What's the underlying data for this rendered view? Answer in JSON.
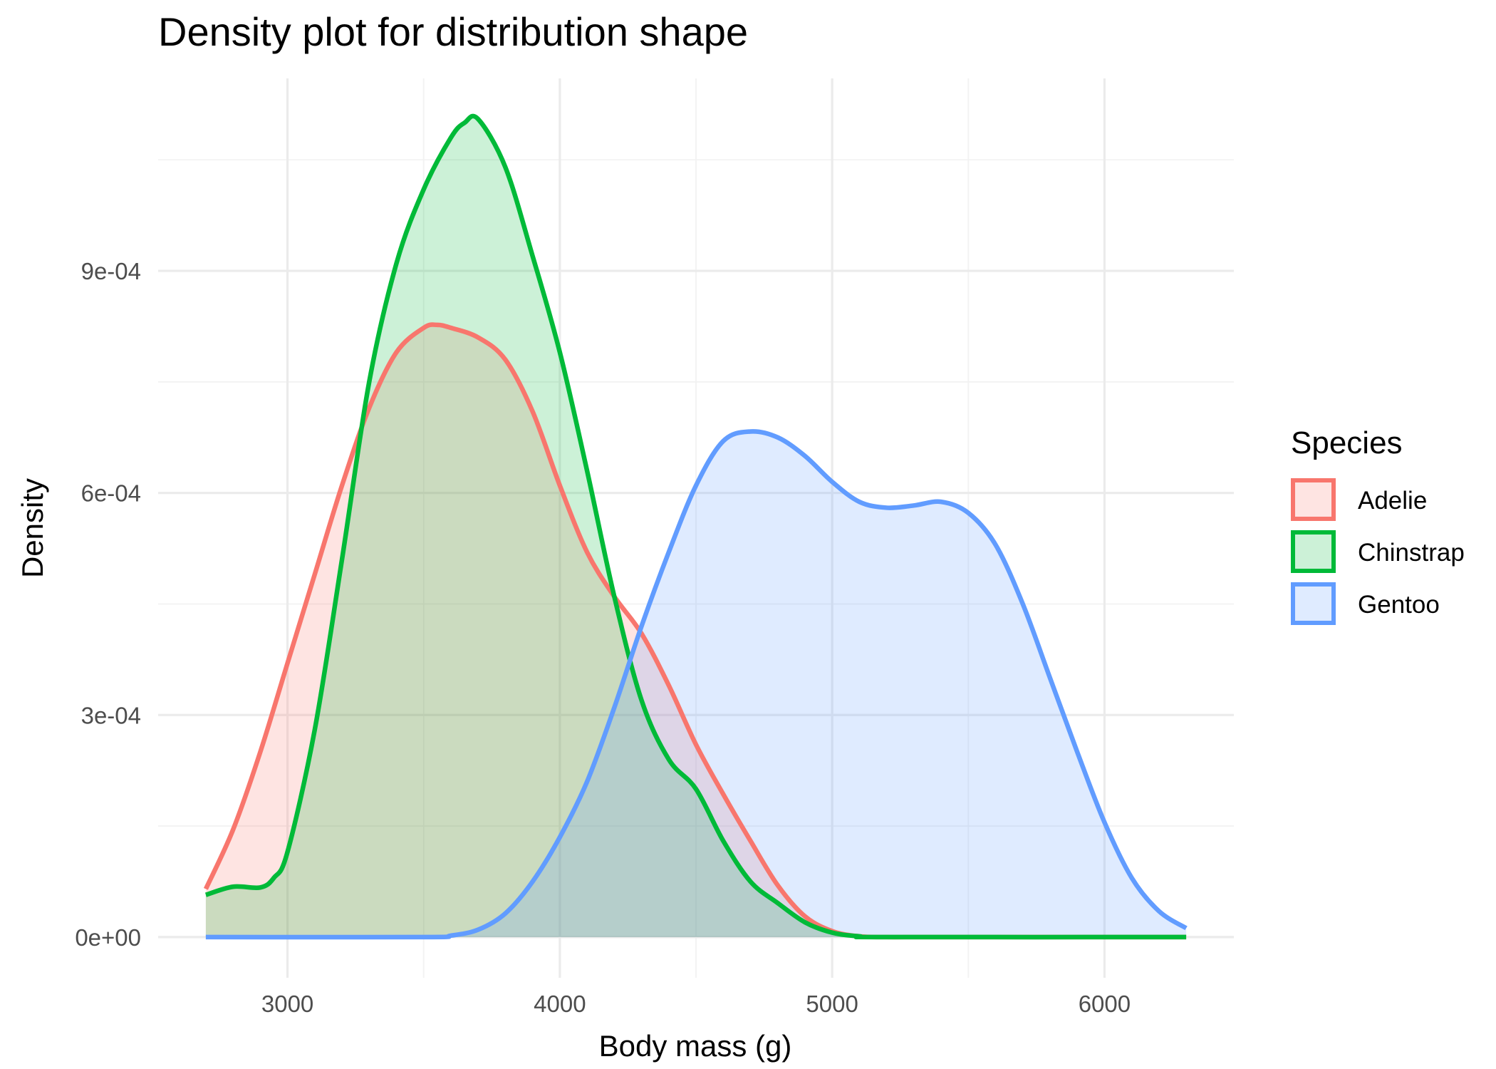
{
  "chart_data": {
    "type": "area",
    "title": "Density plot for distribution shape",
    "xlabel": "Body mass (g)",
    "ylabel": "Density",
    "xlim": [
      2525,
      6475
    ],
    "ylim": [
      -5.5e-05,
      0.00116
    ],
    "x_ticks": [
      {
        "value": 3000,
        "label": "3000"
      },
      {
        "value": 4000,
        "label": "4000"
      },
      {
        "value": 5000,
        "label": "5000"
      },
      {
        "value": 6000,
        "label": "6000"
      }
    ],
    "y_ticks": [
      {
        "value": 0,
        "label": "0e+00"
      },
      {
        "value": 0.0003,
        "label": "3e-04"
      },
      {
        "value": 0.0006,
        "label": "6e-04"
      },
      {
        "value": 0.0009,
        "label": "9e-04"
      }
    ],
    "grid": true,
    "legend": {
      "title": "Species",
      "position": "right"
    },
    "series": [
      {
        "name": "Adelie",
        "color": "#F8766D",
        "points": [
          [
            2700,
            6.5e-05
          ],
          [
            2800,
            0.000145
          ],
          [
            2900,
            0.00025
          ],
          [
            3000,
            0.00037
          ],
          [
            3100,
            0.00049
          ],
          [
            3200,
            0.00061
          ],
          [
            3300,
            0.000715
          ],
          [
            3400,
            0.00079
          ],
          [
            3500,
            0.000823
          ],
          [
            3550,
            0.000827
          ],
          [
            3600,
            0.000823
          ],
          [
            3700,
            0.00081
          ],
          [
            3800,
            0.00078
          ],
          [
            3900,
            0.00071
          ],
          [
            4000,
            0.00061
          ],
          [
            4100,
            0.00052
          ],
          [
            4200,
            0.00046
          ],
          [
            4300,
            0.00041
          ],
          [
            4400,
            0.00034
          ],
          [
            4500,
            0.00026
          ],
          [
            4600,
            0.000193
          ],
          [
            4700,
            0.00013
          ],
          [
            4800,
            7e-05
          ],
          [
            4900,
            2.8e-05
          ],
          [
            5000,
            8e-06
          ],
          [
            5100,
            1e-06
          ],
          [
            5200,
            0
          ],
          [
            5400,
            0
          ],
          [
            6300,
            0
          ]
        ]
      },
      {
        "name": "Chinstrap",
        "color": "#00BA38",
        "points": [
          [
            2700,
            5.7e-05
          ],
          [
            2800,
            6.8e-05
          ],
          [
            2900,
            6.7e-05
          ],
          [
            2950,
            8e-05
          ],
          [
            3000,
            0.000115
          ],
          [
            3100,
            0.00028
          ],
          [
            3200,
            0.00051
          ],
          [
            3300,
            0.00075
          ],
          [
            3400,
            0.00091
          ],
          [
            3500,
            0.00101
          ],
          [
            3600,
            0.00108
          ],
          [
            3650,
            0.0011
          ],
          [
            3700,
            0.001105
          ],
          [
            3800,
            0.00104
          ],
          [
            3900,
            0.00092
          ],
          [
            4000,
            0.00079
          ],
          [
            4100,
            0.00063
          ],
          [
            4200,
            0.00046
          ],
          [
            4300,
            0.00032
          ],
          [
            4400,
            0.00024
          ],
          [
            4500,
            0.0002
          ],
          [
            4600,
            0.00013
          ],
          [
            4700,
            7.5e-05
          ],
          [
            4800,
            4.6e-05
          ],
          [
            4900,
            2e-05
          ],
          [
            5000,
            6e-06
          ],
          [
            5100,
            1e-06
          ],
          [
            5200,
            0
          ],
          [
            6300,
            0
          ]
        ]
      },
      {
        "name": "Gentoo",
        "color": "#619CFF",
        "points": [
          [
            2700,
            0
          ],
          [
            3500,
            0
          ],
          [
            3600,
            2e-06
          ],
          [
            3700,
            1e-05
          ],
          [
            3800,
            3.2e-05
          ],
          [
            3900,
            7.5e-05
          ],
          [
            4000,
            0.000135
          ],
          [
            4100,
            0.00021
          ],
          [
            4200,
            0.00031
          ],
          [
            4300,
            0.00042
          ],
          [
            4400,
            0.00052
          ],
          [
            4500,
            0.00061
          ],
          [
            4600,
            0.00067
          ],
          [
            4700,
            0.000683
          ],
          [
            4800,
            0.000675
          ],
          [
            4900,
            0.00065
          ],
          [
            5000,
            0.000615
          ],
          [
            5100,
            0.000588
          ],
          [
            5200,
            0.00058
          ],
          [
            5300,
            0.000583
          ],
          [
            5400,
            0.000588
          ],
          [
            5500,
            0.000573
          ],
          [
            5600,
            0.00053
          ],
          [
            5700,
            0.00045
          ],
          [
            5800,
            0.00035
          ],
          [
            5900,
            0.00025
          ],
          [
            6000,
            0.000155
          ],
          [
            6100,
            8e-05
          ],
          [
            6200,
            3.5e-05
          ],
          [
            6300,
            1.2e-05
          ]
        ]
      }
    ]
  }
}
